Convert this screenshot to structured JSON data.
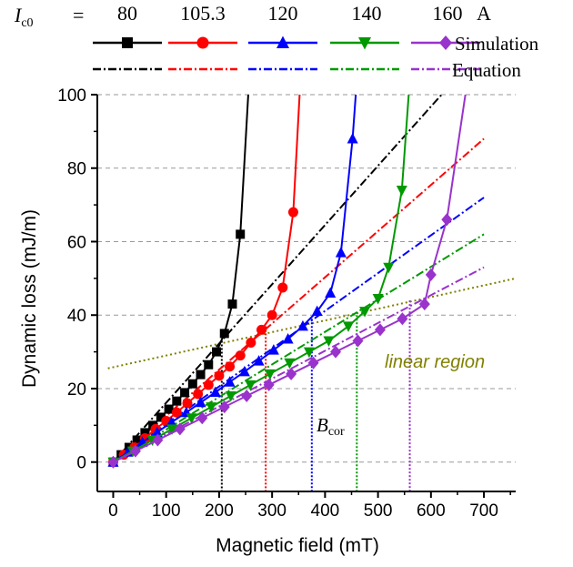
{
  "chart_data": {
    "type": "line",
    "xlabel": "Magnetic field (mT)",
    "ylabel": "Dynamic loss (mJ/m)",
    "xlim": [
      -30,
      760
    ],
    "ylim": [
      -8,
      100
    ],
    "xticks": [
      0,
      100,
      200,
      300,
      400,
      500,
      600,
      700
    ],
    "yticks": [
      0,
      20,
      40,
      60,
      80,
      100
    ],
    "grid": "horizontal-dashed",
    "legend": {
      "position": "top",
      "ic_label": "I",
      "ic_sub": "c0",
      "equals": "=",
      "unit": "A",
      "values": [
        "80",
        "105.3",
        "120",
        "140",
        "160"
      ],
      "simulation_label": "Simulation",
      "equation_label": "Equation"
    },
    "series": [
      {
        "ic": "80",
        "color": "#000000",
        "marker": "square",
        "simulation": [
          [
            0,
            0
          ],
          [
            15,
            2
          ],
          [
            30,
            4
          ],
          [
            45,
            6
          ],
          [
            60,
            8
          ],
          [
            75,
            10
          ],
          [
            90,
            12.2
          ],
          [
            105,
            14.4
          ],
          [
            120,
            16.6
          ],
          [
            135,
            18.9
          ],
          [
            150,
            21.3
          ],
          [
            165,
            23.8
          ],
          [
            180,
            26.5
          ],
          [
            195,
            30
          ],
          [
            210,
            35
          ],
          [
            225,
            43
          ],
          [
            240,
            62
          ]
        ],
        "curve_tail": [
          [
            240,
            62
          ],
          [
            255,
            100
          ]
        ],
        "equation": [
          [
            0,
            0
          ],
          [
            620,
            100
          ]
        ],
        "bcor": 205,
        "bcor_loss": 33
      },
      {
        "ic": "105.3",
        "color": "#ff0000",
        "marker": "circle",
        "simulation": [
          [
            0,
            0
          ],
          [
            20,
            2
          ],
          [
            40,
            4
          ],
          [
            60,
            6.5
          ],
          [
            80,
            9
          ],
          [
            100,
            11.2
          ],
          [
            120,
            13.5
          ],
          [
            140,
            16
          ],
          [
            160,
            18.5
          ],
          [
            180,
            21
          ],
          [
            200,
            23.5
          ],
          [
            220,
            26
          ],
          [
            240,
            29
          ],
          [
            260,
            32.5
          ],
          [
            280,
            36
          ],
          [
            300,
            40
          ],
          [
            320,
            47.5
          ],
          [
            340,
            68
          ]
        ],
        "curve_tail": [
          [
            340,
            68
          ],
          [
            352,
            100
          ]
        ],
        "equation": [
          [
            0,
            0
          ],
          [
            700,
            88
          ]
        ],
        "bcor": 288,
        "bcor_loss": 37
      },
      {
        "ic": "120",
        "color": "#0000ff",
        "marker": "triangle-up",
        "simulation": [
          [
            0,
            0
          ],
          [
            28,
            2.7
          ],
          [
            55,
            5.4
          ],
          [
            83,
            8.1
          ],
          [
            110,
            10.8
          ],
          [
            138,
            13.5
          ],
          [
            165,
            16.2
          ],
          [
            193,
            19
          ],
          [
            220,
            21.8
          ],
          [
            248,
            24.6
          ],
          [
            275,
            27.5
          ],
          [
            303,
            30.5
          ],
          [
            330,
            33.5
          ],
          [
            358,
            37
          ],
          [
            385,
            41
          ],
          [
            410,
            46
          ],
          [
            430,
            57
          ],
          [
            452,
            88
          ]
        ],
        "curve_tail": [
          [
            452,
            88
          ],
          [
            458,
            100
          ]
        ],
        "equation": [
          [
            0,
            0
          ],
          [
            700,
            72
          ]
        ],
        "bcor": 375,
        "bcor_loss": 39
      },
      {
        "ic": "140",
        "color": "#009900",
        "marker": "triangle-down",
        "simulation": [
          [
            0,
            0
          ],
          [
            37,
            3
          ],
          [
            74,
            6
          ],
          [
            111,
            9
          ],
          [
            148,
            12
          ],
          [
            185,
            15
          ],
          [
            222,
            18
          ],
          [
            259,
            21
          ],
          [
            296,
            24
          ],
          [
            333,
            27
          ],
          [
            370,
            30
          ],
          [
            407,
            33
          ],
          [
            444,
            37
          ],
          [
            475,
            41
          ],
          [
            500,
            44.5
          ],
          [
            520,
            53
          ],
          [
            545,
            74
          ]
        ],
        "curve_tail": [
          [
            545,
            74
          ],
          [
            558,
            100
          ]
        ],
        "equation": [
          [
            0,
            0
          ],
          [
            700,
            62
          ]
        ],
        "bcor": 460,
        "bcor_loss": 40
      },
      {
        "ic": "160",
        "color": "#9933cc",
        "marker": "diamond",
        "simulation": [
          [
            0,
            0
          ],
          [
            42,
            3
          ],
          [
            84,
            6
          ],
          [
            126,
            9
          ],
          [
            168,
            12
          ],
          [
            210,
            15
          ],
          [
            252,
            18
          ],
          [
            294,
            21
          ],
          [
            336,
            24
          ],
          [
            378,
            27
          ],
          [
            420,
            30
          ],
          [
            462,
            33
          ],
          [
            504,
            36
          ],
          [
            546,
            39
          ],
          [
            588,
            43
          ],
          [
            600,
            51
          ],
          [
            630,
            66
          ]
        ],
        "curve_tail": [
          [
            630,
            66
          ],
          [
            665,
            100
          ]
        ],
        "equation": [
          [
            0,
            0
          ],
          [
            700,
            53
          ]
        ],
        "bcor": 560,
        "bcor_loss": 44
      }
    ],
    "linear_region_line": {
      "color": "#808000",
      "points": [
        [
          -10,
          25.5
        ],
        [
          760,
          50
        ]
      ]
    },
    "annotations": {
      "linear_region": "linear region",
      "bcor_label": "B",
      "bcor_sub": "cor"
    }
  }
}
